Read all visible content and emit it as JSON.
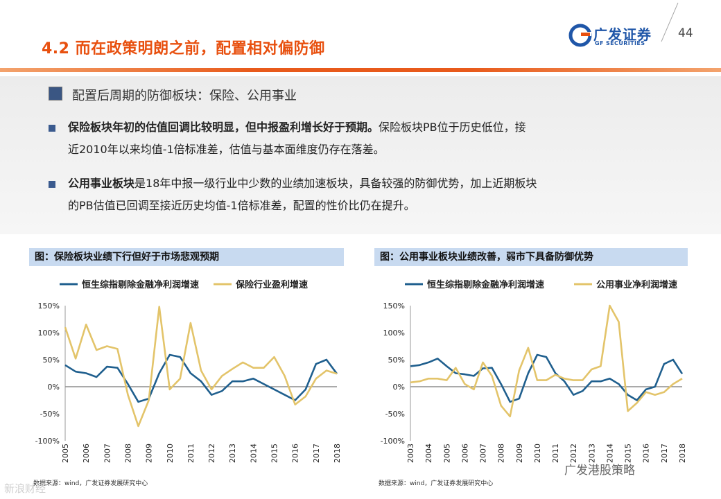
{
  "header": {
    "title": "4.2 而在政策明朗之前，配置相对偏防御",
    "logo_cn": "广发证券",
    "logo_en": "GF SECURITIES",
    "page_number": "44"
  },
  "section": {
    "subtitle": "配置后周期的防御板块：保险、公用事业",
    "points": [
      {
        "bold": "保险板块年初的估值回调比较明显，但中报盈利增长好于预期。",
        "line1_rest": "保险板块PB位于历史低位，接",
        "line2": "近2010年以来均值-1倍标准差，估值与基本面维度仍存在落差。"
      },
      {
        "bold": "公用事业板块",
        "line1_rest": "是18年中报一级行业中少数的业绩加速板块，具备较强的防御优势，加上近期板块",
        "line2": "的PB估值已回调至接近历史均值-1倍标准差，配置的性价比仍在提升。"
      }
    ]
  },
  "colors": {
    "series_blue": "#1f5f8e",
    "series_gold": "#e3c46a",
    "accent": "#e8500f"
  },
  "charts": [
    {
      "header": "图：保险板块业绩下行但好于市场悲观预期",
      "source": "数据来源：wind，广发证券发展研究中心"
    },
    {
      "header": "图：公用事业板块业绩改善，弱市下具备防御优势",
      "source": "数据来源：wind，广发证券发展研究中心"
    }
  ],
  "chart_data": [
    {
      "type": "line",
      "title": "图：保险板块业绩下行但好于市场悲观预期",
      "x": [
        2005,
        2005.5,
        2006,
        2006.5,
        2007,
        2007.5,
        2008,
        2008.5,
        2009,
        2009.5,
        2010,
        2010.5,
        2011,
        2011.5,
        2012,
        2012.5,
        2013,
        2013.5,
        2014,
        2014.5,
        2015,
        2015.5,
        2016,
        2016.5,
        2017,
        2017.5,
        2018
      ],
      "x_tick_labels": [
        "2005",
        "2006",
        "2007",
        "2008",
        "2009",
        "2010",
        "2011",
        "2012",
        "2013",
        "2014",
        "2015",
        "2016",
        "2017",
        "2018"
      ],
      "y_tick_labels": [
        "150%",
        "100%",
        "50%",
        "0%",
        "-50%",
        "-100%"
      ],
      "ylim": [
        -100,
        150
      ],
      "legend": "top",
      "series": [
        {
          "name": "恒生综指剔除金融净利润增速",
          "color": "#1f5f8e",
          "values": [
            40,
            28,
            25,
            18,
            37,
            35,
            5,
            -28,
            -22,
            25,
            59,
            55,
            25,
            10,
            -15,
            -8,
            10,
            10,
            15,
            5,
            -5,
            -15,
            -25,
            -5,
            42,
            50,
            24
          ]
        },
        {
          "name": "保险行业盈利增速",
          "color": "#e3c46a",
          "values": [
            110,
            52,
            115,
            68,
            75,
            70,
            -15,
            -73,
            -25,
            148,
            -5,
            15,
            118,
            30,
            -5,
            20,
            33,
            45,
            35,
            35,
            55,
            20,
            -33,
            -18,
            15,
            30,
            24
          ]
        }
      ]
    },
    {
      "type": "line",
      "title": "图：公用事业板块业绩改善，弱市下具备防御优势",
      "x": [
        2003,
        2003.5,
        2004,
        2004.5,
        2005,
        2005.5,
        2006,
        2006.5,
        2007,
        2007.5,
        2008,
        2008.5,
        2009,
        2009.5,
        2010,
        2010.5,
        2011,
        2011.5,
        2012,
        2012.5,
        2013,
        2013.5,
        2014,
        2014.5,
        2015,
        2015.5,
        2016,
        2016.5,
        2017,
        2017.5,
        2018
      ],
      "x_tick_labels": [
        "2003",
        "2004",
        "2005",
        "2006",
        "2007",
        "2008",
        "2009",
        "2010",
        "2011",
        "2012",
        "2013",
        "2014",
        "2015",
        "2016",
        "2017",
        "2018"
      ],
      "y_tick_labels": [
        "150%",
        "100%",
        "50%",
        "0%",
        "-50%",
        "-100%"
      ],
      "ylim": [
        -100,
        150
      ],
      "legend": "top",
      "series": [
        {
          "name": "恒生综指剔除金融净利润增速",
          "color": "#1f5f8e",
          "values": [
            38,
            40,
            45,
            52,
            38,
            25,
            23,
            20,
            34,
            35,
            5,
            -28,
            -22,
            25,
            59,
            55,
            25,
            10,
            -15,
            -8,
            10,
            10,
            15,
            5,
            -15,
            -25,
            -5,
            0,
            42,
            50,
            24
          ]
        },
        {
          "name": "公用事业净利润增速",
          "color": "#e3c46a",
          "values": [
            8,
            10,
            15,
            15,
            12,
            35,
            5,
            -5,
            45,
            20,
            -35,
            -55,
            30,
            72,
            12,
            12,
            22,
            15,
            12,
            12,
            32,
            38,
            150,
            120,
            -45,
            -30,
            -10,
            -15,
            -10,
            5,
            15
          ]
        }
      ]
    }
  ],
  "watermarks": {
    "left": "新浪财经",
    "right": "广发港股策略"
  }
}
